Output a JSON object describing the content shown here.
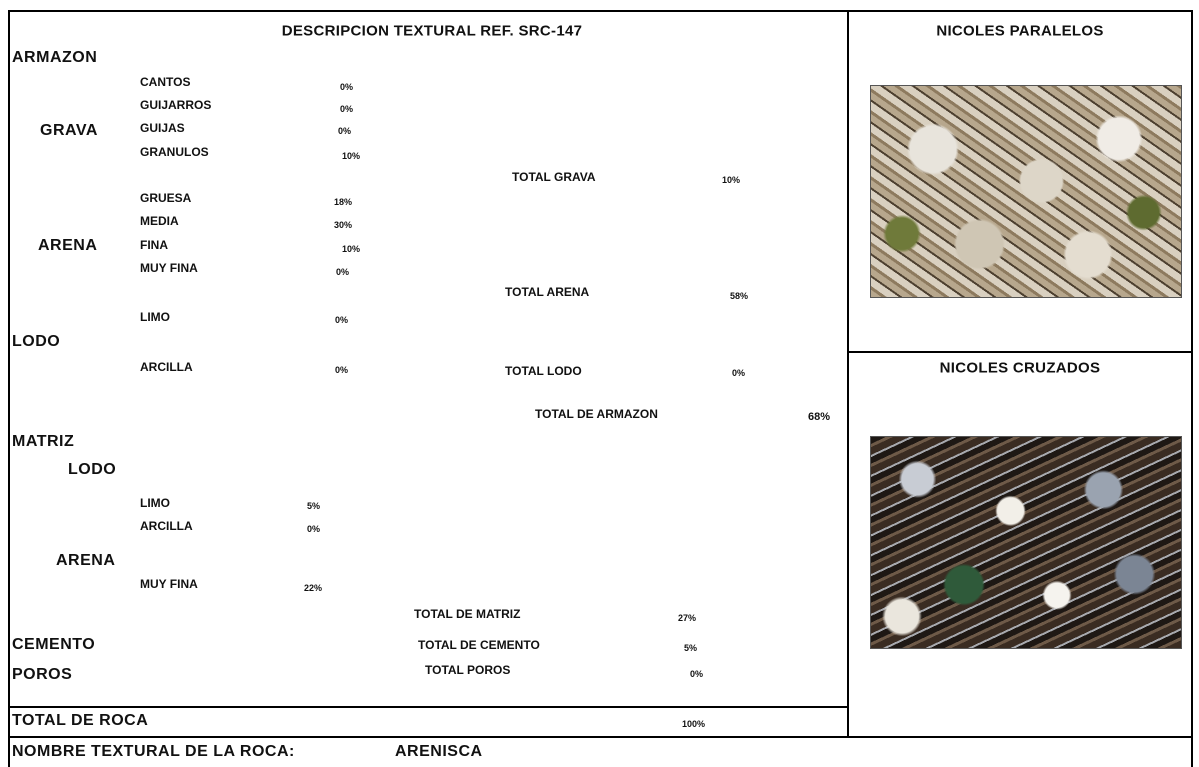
{
  "header": {
    "title": "DESCRIPCION TEXTURAL   REF. SRC-147"
  },
  "armazon": {
    "label": "ARMAZON",
    "grava": {
      "label": "GRAVA",
      "items": [
        {
          "name": "CANTOS",
          "value": "0%"
        },
        {
          "name": "GUIJARROS",
          "value": "0%"
        },
        {
          "name": "GUIJAS",
          "value": "0%"
        },
        {
          "name": "GRANULOS",
          "value": "10%"
        }
      ],
      "total": {
        "label": "TOTAL GRAVA",
        "value": "10%"
      }
    },
    "arena": {
      "label": "ARENA",
      "items": [
        {
          "name": "GRUESA",
          "value": "18%"
        },
        {
          "name": "MEDIA",
          "value": "30%"
        },
        {
          "name": "FINA",
          "value": "10%"
        },
        {
          "name": "MUY FINA",
          "value": "0%"
        }
      ],
      "total": {
        "label": "TOTAL ARENA",
        "value": "58%"
      }
    },
    "lodo": {
      "label": "LODO",
      "items": [
        {
          "name": "LIMO",
          "value": "0%"
        },
        {
          "name": "ARCILLA",
          "value": "0%"
        }
      ],
      "total": {
        "label": "TOTAL LODO",
        "value": "0%"
      }
    },
    "total": {
      "label": "TOTAL DE ARMAZON",
      "value": "68%"
    }
  },
  "matriz": {
    "label": "MATRIZ",
    "lodo": {
      "label": "LODO",
      "items": [
        {
          "name": "LIMO",
          "value": "5%"
        },
        {
          "name": "ARCILLA",
          "value": "0%"
        }
      ]
    },
    "arena": {
      "label": "ARENA",
      "items": [
        {
          "name": "MUY FINA",
          "value": "22%"
        }
      ]
    },
    "total": {
      "label": "TOTAL DE MATRIZ",
      "value": "27%"
    }
  },
  "cemento": {
    "label": "CEMENTO",
    "total": {
      "label": "TOTAL DE CEMENTO",
      "value": "5%"
    }
  },
  "poros": {
    "label": "POROS",
    "total": {
      "label": "TOTAL POROS",
      "value": "0%"
    }
  },
  "roca": {
    "label": "TOTAL DE ROCA",
    "value": "100%"
  },
  "nombre": {
    "label": "NOMBRE TEXTURAL DE LA ROCA:",
    "value": "ARENISCA"
  },
  "images": [
    {
      "title": "NICOLES PARALELOS"
    },
    {
      "title": "NICOLES CRUZADOS"
    }
  ]
}
